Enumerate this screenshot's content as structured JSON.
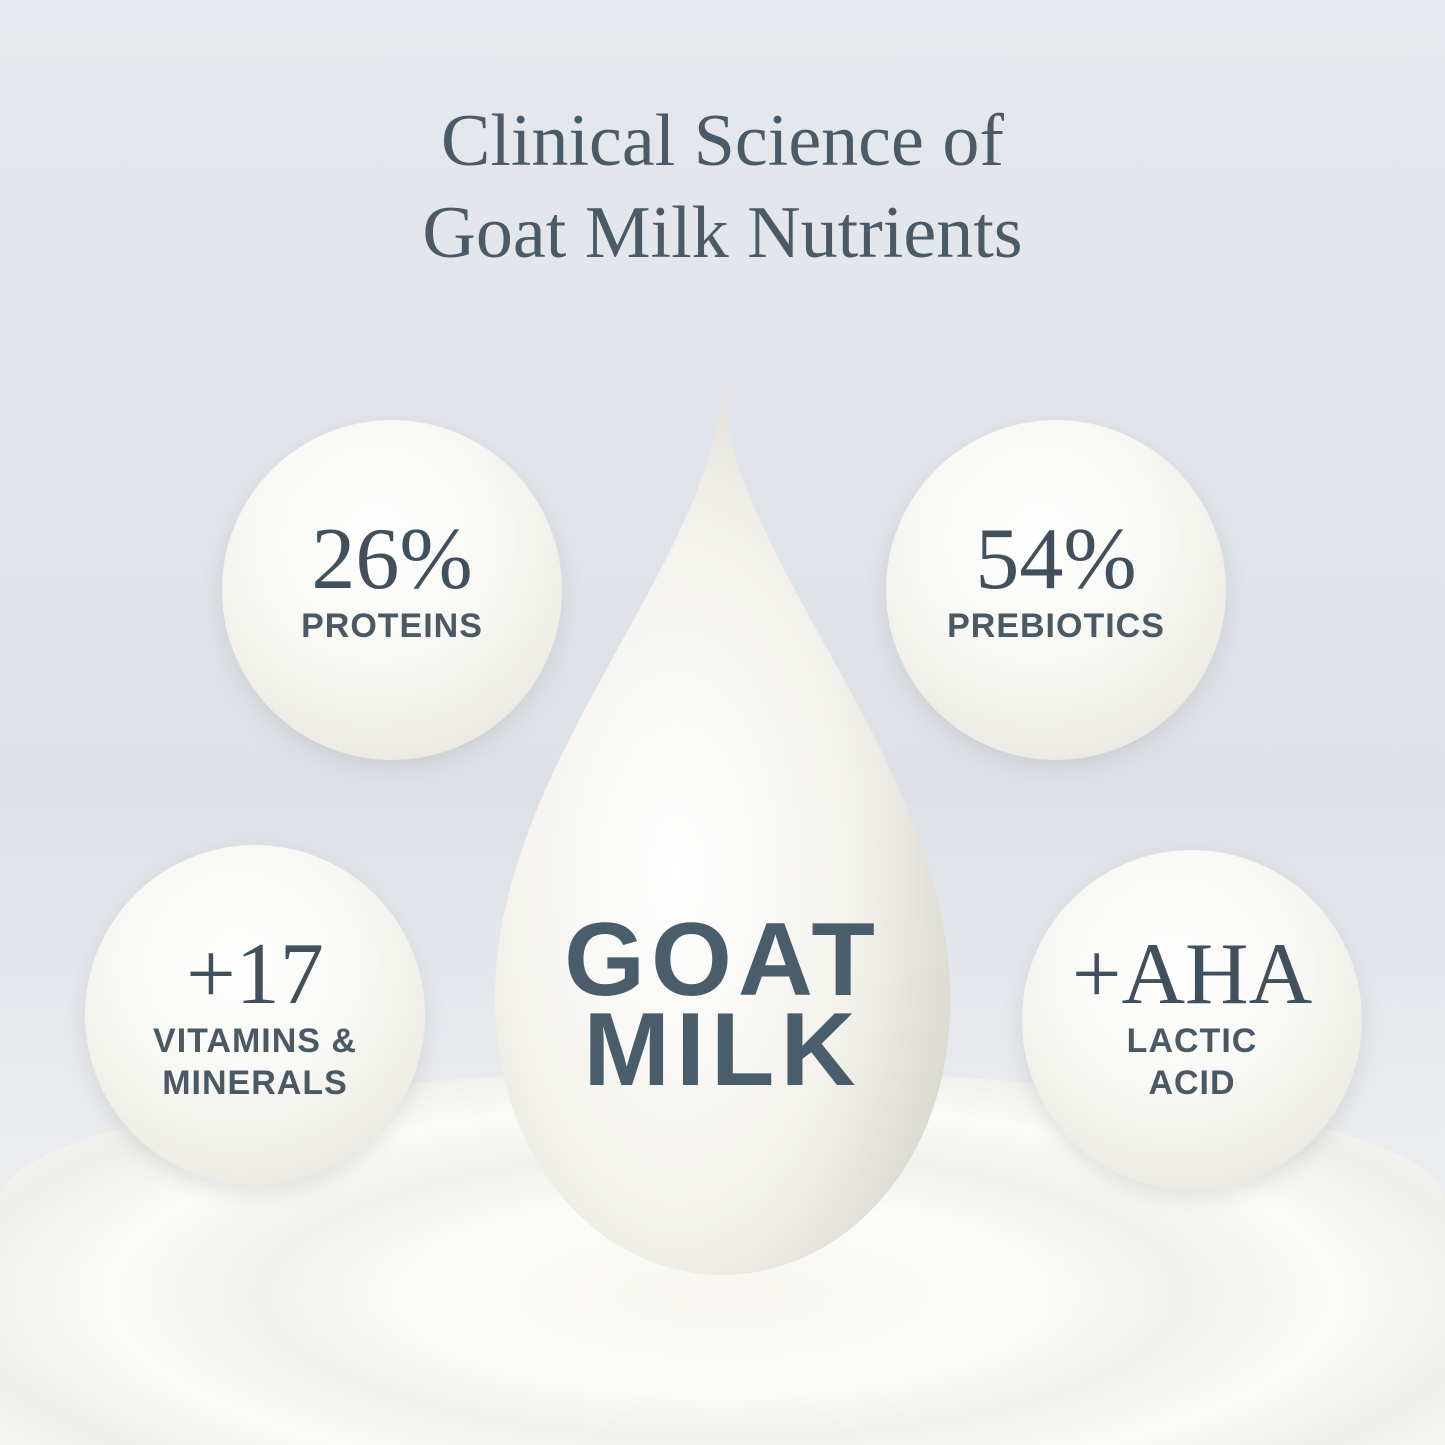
{
  "title": {
    "line1": "Clinical Science of",
    "line2": "Goat Milk Nutrients"
  },
  "center": {
    "line1": "GOAT",
    "line2": "MILK"
  },
  "orbs": [
    {
      "value": "26%",
      "label1": "PROTEINS",
      "label2": ""
    },
    {
      "value": "54%",
      "label1": "PREBIOTICS",
      "label2": ""
    },
    {
      "value": "+17",
      "label1": "VITAMINS &",
      "label2": "MINERALS"
    },
    {
      "value": "+AHA",
      "label1": "LACTIC",
      "label2": "ACID"
    }
  ],
  "colors": {
    "text": "#43535f",
    "background": "#e3e6eb"
  }
}
